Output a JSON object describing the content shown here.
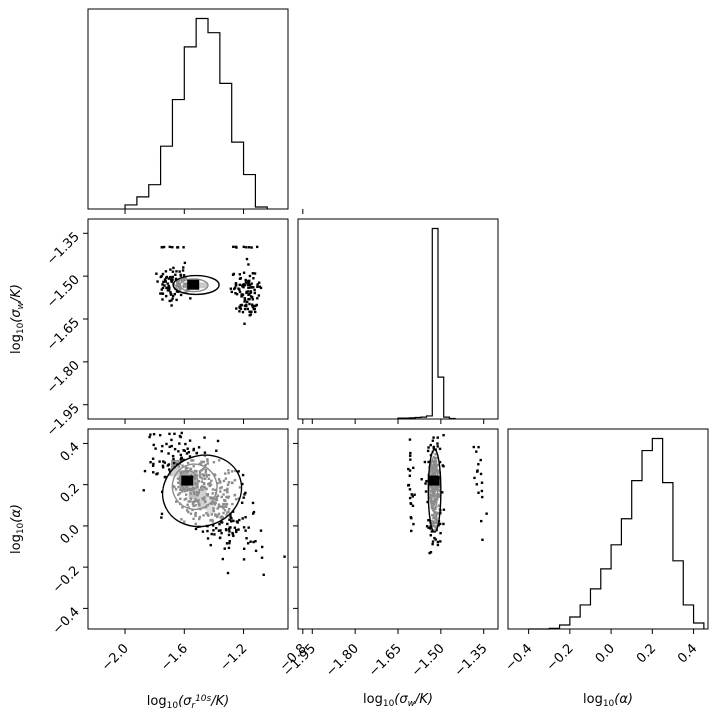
{
  "chart_data": {
    "type": "corner",
    "parameters": [
      "log10_sigma_r",
      "log10_sigma_w",
      "log10_alpha"
    ],
    "axis_labels": {
      "bottom": [
        "log10(σr^10s/K)",
        "log10(σw/K)",
        "log10(α)"
      ],
      "left_row1": "log10(σw/K)",
      "left_row2": "log10(α)"
    },
    "ranges": {
      "log10_sigma_r": [
        -2.25,
        -0.9
      ],
      "log10_sigma_w": [
        -2.0,
        -1.3
      ],
      "log10_alpha": [
        -0.5,
        0.47
      ]
    },
    "ticks": {
      "log10_sigma_r": [
        "-2.0",
        "-1.6",
        "-1.2",
        "-0.8"
      ],
      "log10_sigma_w_x": [
        "-1.95",
        "-1.80",
        "-1.65",
        "-1.50",
        "-1.35"
      ],
      "log10_sigma_w_y": [
        "-1.35",
        "-1.50",
        "-1.65",
        "-1.80",
        "-1.95"
      ],
      "log10_alpha": [
        "-0.4",
        "-0.2",
        "0.0",
        "0.2",
        "0.4"
      ]
    },
    "hist_sigma_r": {
      "edges": [
        -2.0,
        -1.92,
        -1.84,
        -1.76,
        -1.68,
        -1.6,
        -1.52,
        -1.44,
        -1.36,
        -1.28,
        -1.2,
        -1.12,
        -1.04
      ],
      "counts": [
        2,
        6,
        12,
        31,
        54,
        80,
        94,
        87,
        62,
        33,
        17,
        1
      ]
    },
    "hist_sigma_w": {
      "edges": [
        -1.65,
        -1.63,
        -1.61,
        -1.59,
        -1.57,
        -1.55,
        -1.53,
        -1.51,
        -1.49,
        -1.47,
        -1.45
      ],
      "counts": [
        0.5,
        0.5,
        0.6,
        0.8,
        1.0,
        1.6,
        100,
        22,
        1,
        0.3
      ]
    },
    "hist_alpha": {
      "edges": [
        -0.4,
        -0.35,
        -0.3,
        -0.25,
        -0.2,
        -0.15,
        -0.1,
        -0.05,
        0.0,
        0.05,
        0.1,
        0.15,
        0.2,
        0.25,
        0.3,
        0.35,
        0.4,
        0.45
      ],
      "counts": [
        0,
        0,
        0.3,
        2,
        6,
        12,
        20,
        30,
        42,
        55,
        74,
        89,
        95,
        73,
        34,
        12,
        3
      ]
    },
    "scatter_sigma_r_vs_sigma_w": {
      "peak": [
        -1.54,
        -1.53
      ],
      "contours": [
        {
          "cx": -1.55,
          "cy": -1.532,
          "rx": 0.04,
          "ry": 0.012
        },
        {
          "cx": -1.535,
          "cy": -1.532,
          "rx": 0.095,
          "ry": 0.022
        },
        {
          "cx": -1.52,
          "cy": -1.531,
          "rx": 0.155,
          "ry": 0.033
        }
      ]
    },
    "scatter_sigma_r_vs_alpha": {
      "peak": [
        -1.58,
        0.22
      ],
      "contours": [
        {
          "cx": -1.57,
          "cy": 0.22,
          "rx": 0.06,
          "ry": 0.05,
          "rot": -30
        },
        {
          "cx": -1.53,
          "cy": 0.19,
          "rx": 0.15,
          "ry": 0.11,
          "rot": -25
        },
        {
          "cx": -1.48,
          "cy": 0.17,
          "rx": 0.27,
          "ry": 0.17,
          "rot": -20
        }
      ]
    },
    "scatter_sigma_w_vs_alpha": {
      "peak": [
        -1.525,
        0.22
      ],
      "contours": [
        {
          "cx": -1.525,
          "cy": 0.23,
          "rx": 0.007,
          "ry": 0.06
        },
        {
          "cx": -1.525,
          "cy": 0.2,
          "rx": 0.014,
          "ry": 0.13
        },
        {
          "cx": -1.522,
          "cy": 0.17,
          "rx": 0.022,
          "ry": 0.2
        }
      ]
    }
  }
}
